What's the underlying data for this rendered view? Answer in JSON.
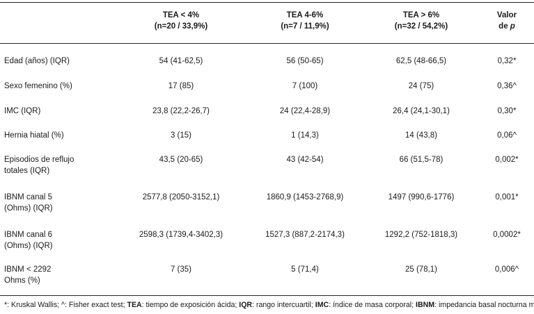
{
  "header": {
    "col1": "",
    "col2_line1": "TEA < 4%",
    "col2_line2": "(n=20 / 33,9%)",
    "col3_line1": "TEA 4-6%",
    "col3_line2": "(n=7 / 11,9%)",
    "col4_line1": "TEA > 6%",
    "col4_line2": "(n=32 / 54,2%)",
    "col5_line1": "Valor",
    "col5_line2_prefix": "de ",
    "col5_line2_p": "p"
  },
  "rows": [
    {
      "label1": "Edad (años) (IQR)",
      "label2": "",
      "tea_lt4": "54 (41-62,5)",
      "tea_4_6": "56 (50-65)",
      "tea_gt6": "62,5 (48-66,5)",
      "p": "0,32*"
    },
    {
      "label1": "Sexo femenino (%)",
      "label2": "",
      "tea_lt4": "17 (85)",
      "tea_4_6": "7 (100)",
      "tea_gt6": "24 (75)",
      "p": "0,36^"
    },
    {
      "label1": "IMC (IQR)",
      "label2": "",
      "tea_lt4": "23,8 (22,2-26,7)",
      "tea_4_6": "24 (22,4-28,9)",
      "tea_gt6": "26,4 (24,1-30,1)",
      "p": "0,30*"
    },
    {
      "label1": "Hernia hiatal (%)",
      "label2": "",
      "tea_lt4": "3 (15)",
      "tea_4_6": "1 (14,3)",
      "tea_gt6": "14 (43,8)",
      "p": "0,06^"
    },
    {
      "label1": "Episodios de reflujo",
      "label2": "totales (IQR)",
      "tea_lt4": "43,5 (20-65)",
      "tea_4_6": "43 (42-54)",
      "tea_gt6": "66 (51,5-78)",
      "p": "0,002*"
    },
    {
      "label1": "IBNM canal 5",
      "label2": "(Ohms) (IQR)",
      "tea_lt4": "2577,8 (2050-3152,1)",
      "tea_4_6": "1860,9 (1453-2768,9)",
      "tea_gt6": "1497 (990,6-1776)",
      "p": "0,001*"
    },
    {
      "label1": "IBNM canal 6",
      "label2": "(Ohms) (IQR)",
      "tea_lt4": "2598,3 (1739,4-3402,3)",
      "tea_4_6": "1527,3 (887,2-2174,3)",
      "tea_gt6": "1292,2 (752-1818,3)",
      "p": "0,0002*"
    },
    {
      "label1": "IBNM < 2292",
      "label2": "Ohms (%)",
      "tea_lt4": "7 (35)",
      "tea_4_6": "5 (71,4)",
      "tea_gt6": "25 (78,1)",
      "p": "0,006^"
    }
  ],
  "footnote": {
    "s1": "*: Kruskal Wallis; ^: Fisher exact test; ",
    "b1": "TEA",
    "s2": ": tiempo de exposición ácida; ",
    "b2": "IQR",
    "s3": ": rango intercuartil; ",
    "b3": "IMC",
    "s4": ": índice de masa corporal; ",
    "b4": "IBNM",
    "s5": ": impedancia basal nocturna media."
  }
}
